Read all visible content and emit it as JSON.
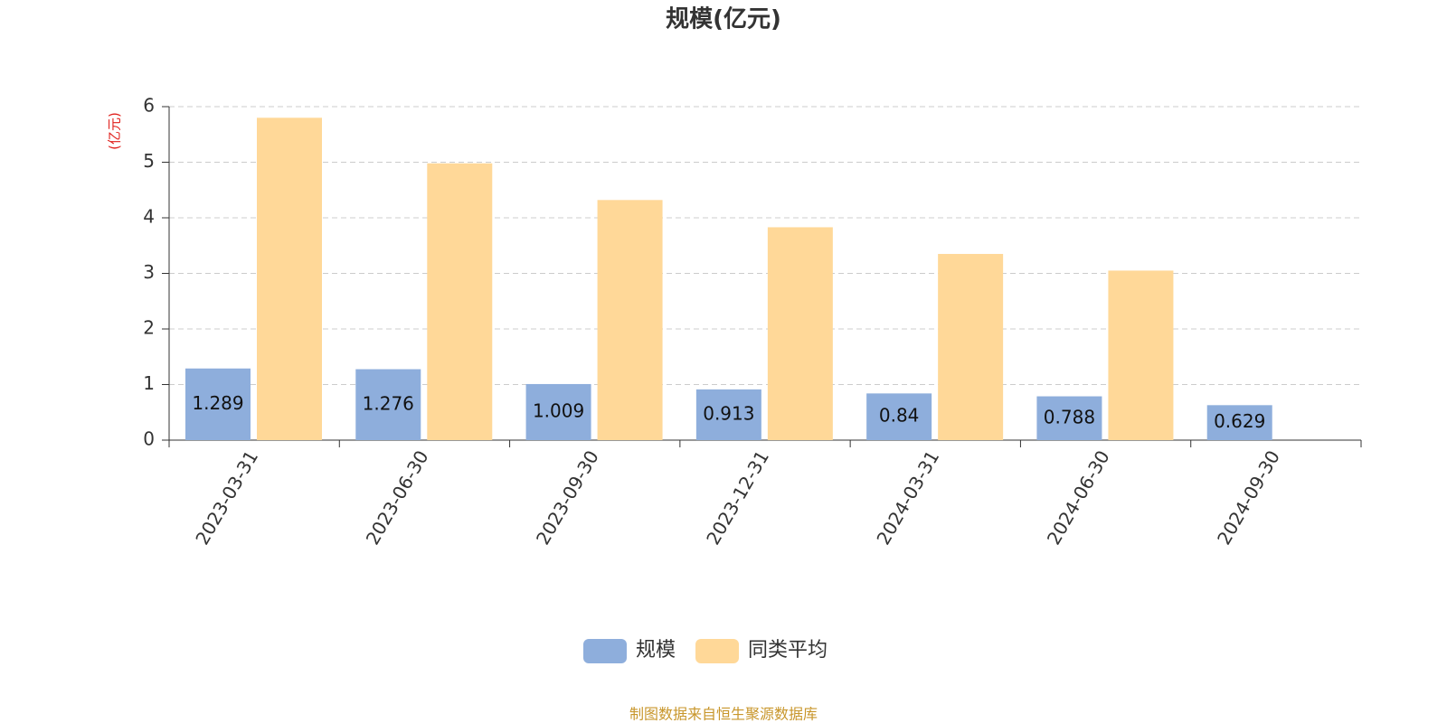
{
  "chart_data": {
    "type": "bar",
    "title": "规模(亿元)",
    "y_label": "(亿元)",
    "categories": [
      "2023-03-31",
      "2023-06-30",
      "2023-09-30",
      "2023-12-31",
      "2024-03-31",
      "2024-06-30",
      "2024-09-30"
    ],
    "series": [
      {
        "name": "规模",
        "color": "#8eaedc",
        "values": [
          1.289,
          1.276,
          1.009,
          0.913,
          0.84,
          0.788,
          0.629
        ]
      },
      {
        "name": "同类平均",
        "color": "#ffd898",
        "values": [
          5.8,
          4.98,
          4.32,
          3.83,
          3.35,
          3.05,
          null
        ]
      }
    ],
    "ylim": [
      0,
      6
    ],
    "yticks": [
      0,
      1,
      2,
      3,
      4,
      5,
      6
    ],
    "grid": true,
    "source": "制图数据来自恒生聚源数据库"
  }
}
